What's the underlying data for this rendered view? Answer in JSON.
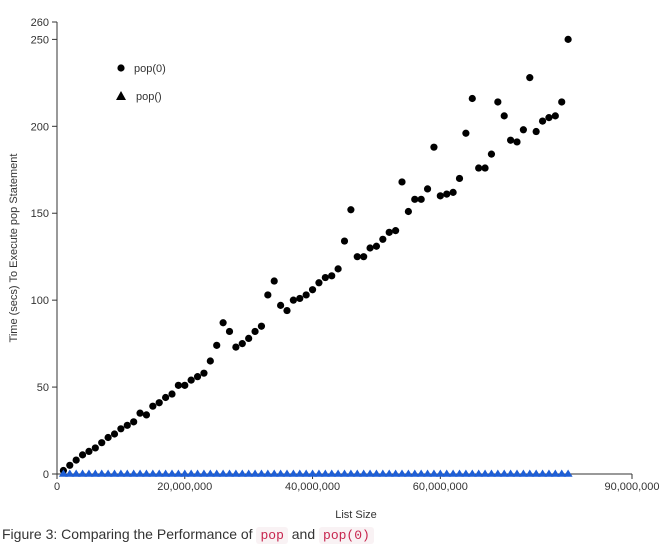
{
  "chart_data": {
    "type": "scatter",
    "xlabel": "List Size",
    "ylabel": "Time (secs) To Execute pop Statement",
    "xlim": [
      0,
      90000000
    ],
    "ylim": [
      0,
      260
    ],
    "x_tick_labels": [
      "0",
      "20,000,000",
      "40,000,000",
      "60,000,000",
      "90,000,000"
    ],
    "y_tick_labels": [
      "0",
      "50",
      "100",
      "150",
      "200",
      "250",
      "260"
    ],
    "x_ticks": [
      0,
      20000000,
      40000000,
      60000000,
      90000000
    ],
    "y_ticks": [
      0,
      50,
      100,
      150,
      200,
      250,
      260
    ],
    "legend_position": "top-left",
    "series": [
      {
        "name": "pop(0)",
        "marker": "circle",
        "color": "#000000",
        "x": [
          1000000,
          2000000,
          3000000,
          4000000,
          5000000,
          6000000,
          7000000,
          8000000,
          9000000,
          10000000,
          11000000,
          12000000,
          13000000,
          14000000,
          15000000,
          16000000,
          17000000,
          18000000,
          19000000,
          20000000,
          21000000,
          22000000,
          23000000,
          24000000,
          25000000,
          26000000,
          27000000,
          28000000,
          29000000,
          30000000,
          31000000,
          32000000,
          33000000,
          34000000,
          35000000,
          36000000,
          37000000,
          38000000,
          39000000,
          40000000,
          41000000,
          42000000,
          43000000,
          44000000,
          45000000,
          46000000,
          47000000,
          48000000,
          49000000,
          50000000,
          51000000,
          52000000,
          53000000,
          54000000,
          55000000,
          56000000,
          57000000,
          58000000,
          59000000,
          60000000,
          61000000,
          62000000,
          63000000,
          64000000,
          65000000,
          66000000,
          67000000,
          68000000,
          69000000,
          70000000,
          71000000,
          72000000,
          73000000,
          74000000,
          75000000,
          76000000,
          77000000,
          78000000,
          79000000,
          80000000
        ],
        "y": [
          2,
          5,
          8,
          11,
          13,
          15,
          18,
          21,
          23,
          26,
          28,
          30,
          35,
          34,
          39,
          41,
          44,
          46,
          51,
          51,
          54,
          56,
          58,
          65,
          74,
          87,
          82,
          73,
          75,
          78,
          82,
          85,
          103,
          111,
          97,
          94,
          100,
          101,
          103,
          106,
          110,
          113,
          114,
          118,
          134,
          152,
          125,
          125,
          130,
          131,
          135,
          139,
          140,
          168,
          151,
          158,
          158,
          164,
          188,
          160,
          161,
          162,
          170,
          196,
          216,
          176,
          176,
          184,
          214,
          206,
          192,
          191,
          198,
          228,
          197,
          203,
          205,
          206,
          214,
          250
        ]
      },
      {
        "name": "pop()",
        "marker": "triangle",
        "color": "#1f5fd6",
        "x": [
          1000000,
          2000000,
          3000000,
          4000000,
          5000000,
          6000000,
          7000000,
          8000000,
          9000000,
          10000000,
          11000000,
          12000000,
          13000000,
          14000000,
          15000000,
          16000000,
          17000000,
          18000000,
          19000000,
          20000000,
          21000000,
          22000000,
          23000000,
          24000000,
          25000000,
          26000000,
          27000000,
          28000000,
          29000000,
          30000000,
          31000000,
          32000000,
          33000000,
          34000000,
          35000000,
          36000000,
          37000000,
          38000000,
          39000000,
          40000000,
          41000000,
          42000000,
          43000000,
          44000000,
          45000000,
          46000000,
          47000000,
          48000000,
          49000000,
          50000000,
          51000000,
          52000000,
          53000000,
          54000000,
          55000000,
          56000000,
          57000000,
          58000000,
          59000000,
          60000000,
          61000000,
          62000000,
          63000000,
          64000000,
          65000000,
          66000000,
          67000000,
          68000000,
          69000000,
          70000000,
          71000000,
          72000000,
          73000000,
          74000000,
          75000000,
          76000000,
          77000000,
          78000000,
          79000000,
          80000000
        ],
        "y": [
          0,
          0,
          0,
          0,
          0,
          0,
          0,
          0,
          0,
          0,
          0,
          0,
          0,
          0,
          0,
          0,
          0,
          0,
          0,
          0,
          0,
          0,
          0,
          0,
          0,
          0,
          0,
          0,
          0,
          0,
          0,
          0,
          0,
          0,
          0,
          0,
          0,
          0,
          0,
          0,
          0,
          0,
          0,
          0,
          0,
          0,
          0,
          0,
          0,
          0,
          0,
          0,
          0,
          0,
          0,
          0,
          0,
          0,
          0,
          0,
          0,
          0,
          0,
          0,
          0,
          0,
          0,
          0,
          0,
          0,
          0,
          0,
          0,
          0,
          0,
          0,
          0,
          0,
          0,
          0
        ]
      }
    ]
  },
  "caption": {
    "prefix": "Figure 3: Comparing the Performance of",
    "code1": "pop",
    "joiner": "and",
    "code2": "pop(0)"
  }
}
